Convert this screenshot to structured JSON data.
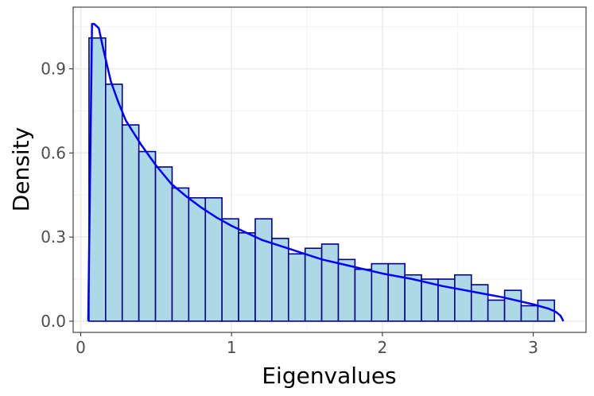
{
  "chart_data": {
    "type": "bar",
    "xlabel": "Eigenvalues",
    "ylabel": "Density",
    "xlim": [
      -0.05,
      3.35
    ],
    "ylim": [
      -0.04,
      1.12
    ],
    "x_ticks": [
      0,
      1,
      2,
      3
    ],
    "x_tick_labels": [
      "0",
      "1",
      "2",
      "3"
    ],
    "x_minor_ticks": [
      0.5,
      1.5,
      2.5
    ],
    "y_ticks": [
      0.0,
      0.3,
      0.6,
      0.9
    ],
    "y_tick_labels": [
      "0.0",
      "0.3",
      "0.6",
      "0.9"
    ],
    "y_minor_ticks": [
      0.15,
      0.45,
      0.75,
      1.05
    ],
    "grid": true,
    "legend": "none",
    "histogram": {
      "bin_start": 0.055,
      "bin_width": 0.1102,
      "density": [
        1.01,
        0.845,
        0.7,
        0.605,
        0.55,
        0.475,
        0.44,
        0.44,
        0.365,
        0.315,
        0.365,
        0.295,
        0.24,
        0.26,
        0.275,
        0.22,
        0.185,
        0.205,
        0.205,
        0.165,
        0.15,
        0.15,
        0.165,
        0.13,
        0.075,
        0.11,
        0.055,
        0.075
      ],
      "fill_color": "#ADD8E6",
      "edge_color": "#00008B"
    },
    "series": [
      {
        "type": "line",
        "color": "#0000FF",
        "x": [
          0.05,
          0.075,
          0.09,
          0.12,
          0.15,
          0.2,
          0.25,
          0.3,
          0.4,
          0.5,
          0.6,
          0.7,
          0.8,
          0.9,
          1.0,
          1.2,
          1.4,
          1.6,
          1.8,
          2.0,
          2.2,
          2.4,
          2.6,
          2.8,
          3.0,
          3.1,
          3.15,
          3.18,
          3.2
        ],
        "y": [
          0.0,
          1.06,
          1.06,
          1.045,
          0.97,
          0.855,
          0.78,
          0.715,
          0.63,
          0.555,
          0.49,
          0.445,
          0.405,
          0.37,
          0.34,
          0.29,
          0.255,
          0.22,
          0.195,
          0.17,
          0.15,
          0.125,
          0.105,
          0.085,
          0.06,
          0.045,
          0.033,
          0.02,
          0.0
        ]
      }
    ]
  }
}
